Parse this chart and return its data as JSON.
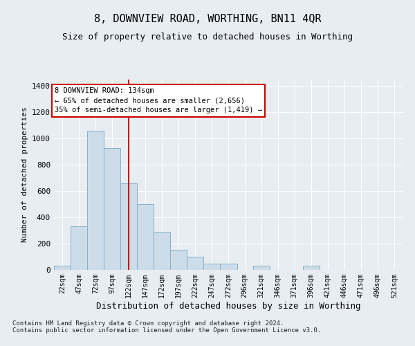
{
  "title": "8, DOWNVIEW ROAD, WORTHING, BN11 4QR",
  "subtitle": "Size of property relative to detached houses in Worthing",
  "xlabel": "Distribution of detached houses by size in Worthing",
  "ylabel": "Number of detached properties",
  "footer_line1": "Contains HM Land Registry data © Crown copyright and database right 2024.",
  "footer_line2": "Contains public sector information licensed under the Open Government Licence v3.0.",
  "annotation_line1": "8 DOWNVIEW ROAD: 134sqm",
  "annotation_line2": "← 65% of detached houses are smaller (2,656)",
  "annotation_line3": "35% of semi-detached houses are larger (1,419) →",
  "bar_color": "#ccdce8",
  "bar_edge_color": "#8ab0cc",
  "red_line_x": 134,
  "bins": [
    22,
    47,
    72,
    97,
    122,
    147,
    172,
    197,
    222,
    247,
    272,
    296,
    321,
    346,
    371,
    396,
    421,
    446,
    471,
    496,
    521
  ],
  "bar_heights": [
    30,
    330,
    1060,
    930,
    660,
    500,
    290,
    155,
    100,
    50,
    50,
    0,
    30,
    0,
    0,
    30,
    0,
    0,
    0,
    0,
    0
  ],
  "ylim": [
    0,
    1450
  ],
  "yticks": [
    0,
    200,
    400,
    600,
    800,
    1000,
    1200,
    1400
  ],
  "bg_color": "#e8edf2",
  "plot_bg_color": "#e8edf2",
  "grid_color": "#ffffff",
  "annotation_box_facecolor": "#ffffff",
  "annotation_box_edgecolor": "#cc0000",
  "red_line_color": "#cc0000",
  "title_fontsize": 11,
  "subtitle_fontsize": 9,
  "tick_fontsize": 7,
  "ylabel_fontsize": 8,
  "xlabel_fontsize": 9,
  "footer_fontsize": 6.5,
  "annotation_fontsize": 7.5
}
